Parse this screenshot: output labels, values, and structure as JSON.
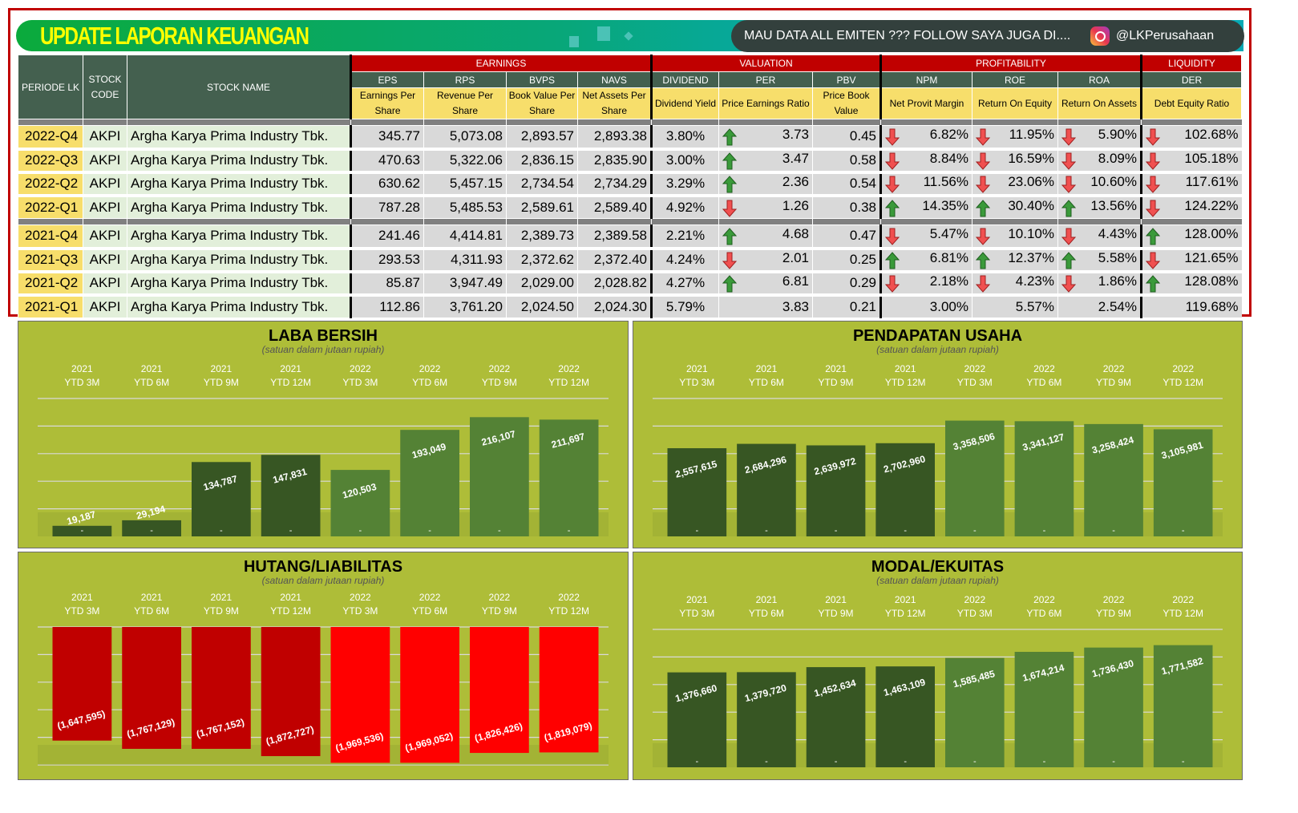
{
  "banner": {
    "title": "UPDATE LAPORAN KEUANGAN",
    "promo_text": "MAU DATA ALL EMITEN ??? FOLLOW SAYA JUGA DI....",
    "instagram_icon": "instagram-icon",
    "instagram_handle": "@LKPerusahaan"
  },
  "table": {
    "fixed_headers": {
      "period": "PERIODE LK",
      "code": "STOCK CODE",
      "name": "STOCK NAME"
    },
    "groups": [
      {
        "label": "EARNINGS",
        "span": 4
      },
      {
        "label": "VALUATION",
        "span": 3
      },
      {
        "label": "PROFITABILITY",
        "span": 3
      },
      {
        "label": "LIQUIDITY",
        "span": 1
      }
    ],
    "columns": [
      {
        "code": "EPS",
        "desc": "Earnings Per Share"
      },
      {
        "code": "RPS",
        "desc": "Revenue Per Share"
      },
      {
        "code": "BVPS",
        "desc": "Book Value Per Share"
      },
      {
        "code": "NAVS",
        "desc": "Net Assets Per Share"
      },
      {
        "code": "DIVIDEND",
        "desc": "Dividend Yield"
      },
      {
        "code": "PER",
        "desc": "Price Earnings Ratio"
      },
      {
        "code": "PBV",
        "desc": "Price Book Value"
      },
      {
        "code": "NPM",
        "desc": "Net Provit Margin"
      },
      {
        "code": "ROE",
        "desc": "Return On Equity"
      },
      {
        "code": "ROA",
        "desc": "Return On Assets"
      },
      {
        "code": "DER",
        "desc": "Debt Equity Ratio"
      }
    ],
    "colors": {
      "up": "#3A9A3A",
      "down": "#F05050",
      "group_header": "#C00000",
      "sub_header": "#44604F",
      "desc_header": "#F7DE6B"
    },
    "rows": [
      {
        "period": "2022-Q4",
        "code": "AKPI",
        "name": "Argha Karya Prima Industry Tbk.",
        "eps": "345.77",
        "rps": "5,073.08",
        "bvps": "2,893.57",
        "navs": "2,893.38",
        "div": "3.80%",
        "per": "3.73",
        "per_trend": "up",
        "pbv": "0.45",
        "npm": "6.82%",
        "npm_trend": "down",
        "roe": "11.95%",
        "roe_trend": "down",
        "roa": "5.90%",
        "roa_trend": "down",
        "der": "102.68%",
        "der_trend": "down"
      },
      {
        "period": "2022-Q3",
        "code": "AKPI",
        "name": "Argha Karya Prima Industry Tbk.",
        "eps": "470.63",
        "rps": "5,322.06",
        "bvps": "2,836.15",
        "navs": "2,835.90",
        "div": "3.00%",
        "per": "3.47",
        "per_trend": "up",
        "pbv": "0.58",
        "npm": "8.84%",
        "npm_trend": "down",
        "roe": "16.59%",
        "roe_trend": "down",
        "roa": "8.09%",
        "roa_trend": "down",
        "der": "105.18%",
        "der_trend": "down"
      },
      {
        "period": "2022-Q2",
        "code": "AKPI",
        "name": "Argha Karya Prima Industry Tbk.",
        "eps": "630.62",
        "rps": "5,457.15",
        "bvps": "2,734.54",
        "navs": "2,734.29",
        "div": "3.29%",
        "per": "2.36",
        "per_trend": "up",
        "pbv": "0.54",
        "npm": "11.56%",
        "npm_trend": "down",
        "roe": "23.06%",
        "roe_trend": "down",
        "roa": "10.60%",
        "roa_trend": "down",
        "der": "117.61%",
        "der_trend": "down"
      },
      {
        "period": "2022-Q1",
        "code": "AKPI",
        "name": "Argha Karya Prima Industry Tbk.",
        "eps": "787.28",
        "rps": "5,485.53",
        "bvps": "2,589.61",
        "navs": "2,589.40",
        "div": "4.92%",
        "per": "1.26",
        "per_trend": "down",
        "pbv": "0.38",
        "npm": "14.35%",
        "npm_trend": "up",
        "roe": "30.40%",
        "roe_trend": "up",
        "roa": "13.56%",
        "roa_trend": "up",
        "der": "124.22%",
        "der_trend": "down"
      },
      {
        "period": "2021-Q4",
        "code": "AKPI",
        "name": "Argha Karya Prima Industry Tbk.",
        "eps": "241.46",
        "rps": "4,414.81",
        "bvps": "2,389.73",
        "navs": "2,389.58",
        "div": "2.21%",
        "per": "4.68",
        "per_trend": "up",
        "pbv": "0.47",
        "npm": "5.47%",
        "npm_trend": "down",
        "roe": "10.10%",
        "roe_trend": "down",
        "roa": "4.43%",
        "roa_trend": "down",
        "der": "128.00%",
        "der_trend": "up"
      },
      {
        "period": "2021-Q3",
        "code": "AKPI",
        "name": "Argha Karya Prima Industry Tbk.",
        "eps": "293.53",
        "rps": "4,311.93",
        "bvps": "2,372.62",
        "navs": "2,372.40",
        "div": "4.24%",
        "per": "2.01",
        "per_trend": "down",
        "pbv": "0.25",
        "npm": "6.81%",
        "npm_trend": "up",
        "roe": "12.37%",
        "roe_trend": "up",
        "roa": "5.58%",
        "roa_trend": "up",
        "der": "121.65%",
        "der_trend": "down"
      },
      {
        "period": "2021-Q2",
        "code": "AKPI",
        "name": "Argha Karya Prima Industry Tbk.",
        "eps": "85.87",
        "rps": "3,947.49",
        "bvps": "2,029.00",
        "navs": "2,028.82",
        "div": "4.27%",
        "per": "6.81",
        "per_trend": "up",
        "pbv": "0.29",
        "npm": "2.18%",
        "npm_trend": "down",
        "roe": "4.23%",
        "roe_trend": "down",
        "roa": "1.86%",
        "roa_trend": "down",
        "der": "128.08%",
        "der_trend": "up"
      },
      {
        "period": "2021-Q1",
        "code": "AKPI",
        "name": "Argha Karya Prima Industry Tbk.",
        "eps": "112.86",
        "rps": "3,761.20",
        "bvps": "2,024.50",
        "navs": "2,024.30",
        "div": "5.79%",
        "per": "3.83",
        "per_trend": "",
        "pbv": "0.21",
        "npm": "3.00%",
        "npm_trend": "",
        "roe": "5.57%",
        "roe_trend": "",
        "roa": "2.54%",
        "roa_trend": "",
        "der": "119.68%",
        "der_trend": ""
      }
    ]
  },
  "chart_data": [
    {
      "type": "bar",
      "title": "LABA BERSIH",
      "subtitle": "(satuan dalam jutaan rupiah)",
      "categories": [
        [
          "2021",
          "YTD 3M"
        ],
        [
          "2021",
          "YTD 6M"
        ],
        [
          "2021",
          "YTD 9M"
        ],
        [
          "2021",
          "YTD 12M"
        ],
        [
          "2022",
          "YTD 3M"
        ],
        [
          "2022",
          "YTD 6M"
        ],
        [
          "2022",
          "YTD 9M"
        ],
        [
          "2022",
          "YTD 12M"
        ]
      ],
      "values": [
        19187,
        29194,
        134787,
        147831,
        120503,
        193049,
        216107,
        211697
      ],
      "labels": [
        "19,187",
        "29,194",
        "134,787",
        "147,831",
        "120,503",
        "193,049",
        "216,107",
        "211,697"
      ],
      "base_labels": "-",
      "ylim": [
        0,
        250000
      ],
      "grid": true,
      "colors": [
        "#375623",
        "#548235"
      ]
    },
    {
      "type": "bar",
      "title": "PENDAPATAN USAHA",
      "subtitle": "(satuan dalam jutaan rupiah)",
      "categories": [
        [
          "2021",
          "YTD 3M"
        ],
        [
          "2021",
          "YTD 6M"
        ],
        [
          "2021",
          "YTD 9M"
        ],
        [
          "2021",
          "YTD 12M"
        ],
        [
          "2022",
          "YTD 3M"
        ],
        [
          "2022",
          "YTD 6M"
        ],
        [
          "2022",
          "YTD 9M"
        ],
        [
          "2022",
          "YTD 12M"
        ]
      ],
      "values": [
        2557615,
        2684296,
        2639972,
        2702960,
        3358506,
        3341127,
        3258424,
        3105981
      ],
      "labels": [
        "2,557,615",
        "2,684,296",
        "2,639,972",
        "2,702,960",
        "3,358,506",
        "3,341,127",
        "3,258,424",
        "3,105,981"
      ],
      "base_labels": "-",
      "ylim": [
        0,
        4000000
      ],
      "grid": true,
      "colors": [
        "#375623",
        "#548235"
      ]
    },
    {
      "type": "bar",
      "title": "HUTANG/LIABILITAS",
      "subtitle": "(satuan dalam jutaan rupiah)",
      "categories": [
        [
          "2021",
          "YTD 3M"
        ],
        [
          "2021",
          "YTD 6M"
        ],
        [
          "2021",
          "YTD 9M"
        ],
        [
          "2021",
          "YTD 12M"
        ],
        [
          "2022",
          "YTD 3M"
        ],
        [
          "2022",
          "YTD 6M"
        ],
        [
          "2022",
          "YTD 9M"
        ],
        [
          "2022",
          "YTD 12M"
        ]
      ],
      "values": [
        -1647595,
        -1767129,
        -1767152,
        -1872727,
        -1969536,
        -1969052,
        -1826426,
        -1819079
      ],
      "labels": [
        "(1,647,595)",
        "(1,767,129)",
        "(1,767,152)",
        "(1,872,727)",
        "(1,969,536)",
        "(1,969,052)",
        "(1,826,426)",
        "(1,819,079)"
      ],
      "ylim": [
        -2000000,
        0
      ],
      "grid": true,
      "colors": [
        "#C00000",
        "#FF0000"
      ]
    },
    {
      "type": "bar",
      "title": "MODAL/EKUITAS",
      "subtitle": "(satuan dalam jutaan rupiah)",
      "categories": [
        [
          "2021",
          "YTD 3M"
        ],
        [
          "2021",
          "YTD 6M"
        ],
        [
          "2021",
          "YTD 9M"
        ],
        [
          "2021",
          "YTD 12M"
        ],
        [
          "2022",
          "YTD 3M"
        ],
        [
          "2022",
          "YTD 6M"
        ],
        [
          "2022",
          "YTD 9M"
        ],
        [
          "2022",
          "YTD 12M"
        ]
      ],
      "values": [
        1376660,
        1379720,
        1452634,
        1463109,
        1585485,
        1674214,
        1736430,
        1771582
      ],
      "labels": [
        "1,376,660",
        "1,379,720",
        "1,452,634",
        "1,463,109",
        "1,585,485",
        "1,674,214",
        "1,736,430",
        "1,771,582"
      ],
      "base_labels": "-",
      "ylim": [
        0,
        2000000
      ],
      "grid": true,
      "colors": [
        "#375623",
        "#548235"
      ]
    }
  ]
}
